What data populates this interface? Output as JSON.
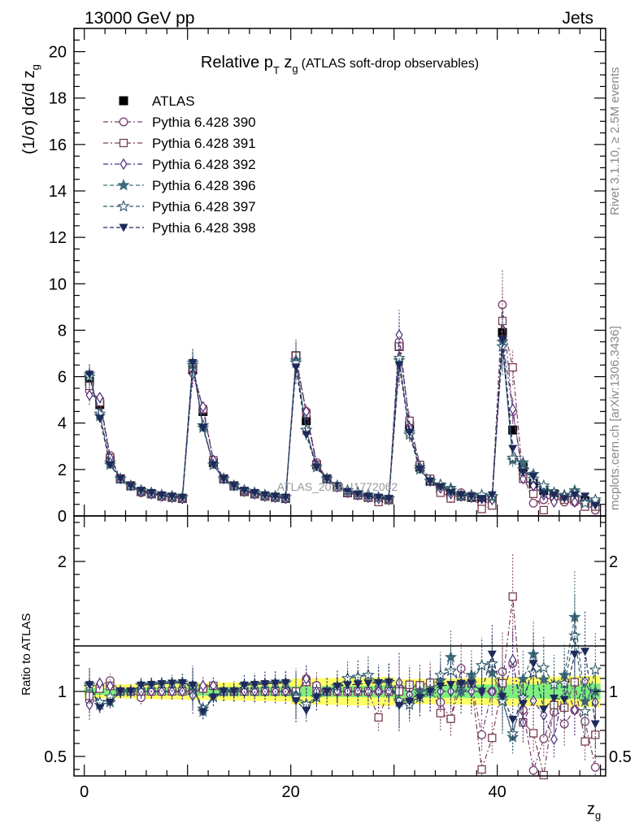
{
  "header": {
    "left": "13000 GeV pp",
    "right": "Jets"
  },
  "side_labels": {
    "top": "Rivet 3.1.10, ≥ 2.5M events",
    "bottom": "mcplots.cern.ch [arXiv:1306.3436]"
  },
  "watermark": "ATLAS_2019_I1772062",
  "title": {
    "main": "Relative p",
    "sub_t": "T",
    "mid": " z",
    "sub_g": "g",
    "tail": "(ATLAS soft-drop observables)"
  },
  "chart_data": [
    {
      "type": "line",
      "panel": "main",
      "ylabel": "(1/σ) dσ/d z",
      "ylabel_sub": "g",
      "xlim": [
        -1,
        50.5
      ],
      "ylim": [
        0,
        21
      ],
      "y_ticks": [
        "0",
        "2",
        "4",
        "6",
        "8",
        "10",
        "12",
        "14",
        "16",
        "18",
        "20"
      ],
      "legend": {
        "placement": "top-left"
      },
      "x": [
        0.5,
        1.5,
        2.5,
        3.5,
        4.5,
        5.5,
        6.5,
        7.5,
        8.5,
        9.5,
        10.5,
        11.5,
        12.5,
        13.5,
        14.5,
        15.5,
        16.5,
        17.5,
        18.5,
        19.5,
        20.5,
        21.5,
        22.5,
        23.5,
        24.5,
        25.5,
        26.5,
        27.5,
        28.5,
        29.5,
        30.5,
        31.5,
        32.5,
        33.5,
        34.5,
        35.5,
        36.5,
        37.5,
        38.5,
        39.5,
        40.5,
        41.5,
        42.5,
        43.5,
        44.5,
        45.5,
        46.5,
        47.5,
        48.5,
        49.5
      ],
      "series": [
        {
          "name": "ATLAS",
          "color": "#000000",
          "marker": "square-filled",
          "values": [
            5.8,
            4.8,
            2.4,
            1.6,
            1.3,
            1.05,
            0.95,
            0.85,
            0.8,
            0.75,
            6.3,
            4.5,
            2.3,
            1.6,
            1.3,
            1.05,
            0.95,
            0.85,
            0.8,
            0.75,
            6.9,
            4.1,
            2.2,
            1.6,
            1.25,
            1.0,
            0.9,
            0.8,
            0.75,
            0.7,
            7.3,
            3.9,
            2.1,
            1.5,
            1.2,
            0.95,
            0.85,
            0.8,
            0.75,
            0.7,
            7.9,
            3.7,
            2.1,
            1.4,
            1.1,
            0.95,
            0.8,
            0.7,
            0.65,
            0.6
          ]
        },
        {
          "name": "Pythia 6.428 390",
          "color": "#7a3e6e",
          "marker": "circle-open",
          "values": [
            5.4,
            5.0,
            2.6,
            1.6,
            1.3,
            1.0,
            0.95,
            0.85,
            0.8,
            0.75,
            6.3,
            4.6,
            2.4,
            1.6,
            1.3,
            1.05,
            0.95,
            0.85,
            0.8,
            0.75,
            6.8,
            4.5,
            2.3,
            1.6,
            1.25,
            1.0,
            0.9,
            0.8,
            0.75,
            0.7,
            7.5,
            4.0,
            2.2,
            1.6,
            1.1,
            0.75,
            1.0,
            0.85,
            0.5,
            0.7,
            9.1,
            4.5,
            1.8,
            0.55,
            0.7,
            0.8,
            0.6,
            0.6,
            0.5,
            0.25
          ]
        },
        {
          "name": "Pythia 6.428 391",
          "color": "#7a3e52",
          "marker": "square-open",
          "values": [
            5.6,
            4.9,
            2.5,
            1.6,
            1.3,
            1.05,
            0.95,
            0.85,
            0.8,
            0.75,
            6.4,
            4.6,
            2.4,
            1.6,
            1.3,
            1.05,
            0.95,
            0.85,
            0.8,
            0.75,
            6.9,
            4.4,
            2.2,
            1.6,
            1.25,
            1.0,
            0.9,
            0.8,
            0.6,
            0.7,
            7.3,
            4.1,
            2.2,
            1.6,
            1.0,
            0.75,
            0.9,
            0.85,
            0.3,
            0.45,
            8.4,
            6.4,
            1.6,
            0.95,
            0.25,
            0.85,
            0.7,
            0.75,
            0.4,
            0.4
          ]
        },
        {
          "name": "Pythia 6.428 392",
          "color": "#4b2b7a",
          "marker": "diamond-open",
          "values": [
            5.2,
            5.1,
            2.5,
            1.6,
            1.3,
            1.05,
            0.95,
            0.85,
            0.8,
            0.75,
            6.1,
            4.7,
            2.4,
            1.6,
            1.3,
            1.05,
            0.95,
            0.85,
            0.8,
            0.75,
            6.7,
            4.5,
            2.2,
            1.6,
            1.25,
            1.0,
            0.9,
            0.8,
            0.75,
            0.7,
            7.8,
            3.8,
            2.1,
            1.5,
            1.2,
            0.95,
            0.85,
            0.8,
            0.75,
            0.7,
            7.6,
            4.6,
            1.6,
            1.3,
            0.9,
            0.6,
            0.85,
            0.6,
            0.7,
            0.55
          ]
        },
        {
          "name": "Pythia 6.428 396",
          "color": "#3f6a7a",
          "marker": "star-filled",
          "values": [
            6.1,
            4.3,
            2.2,
            1.6,
            1.3,
            1.1,
            1.0,
            0.9,
            0.85,
            0.8,
            6.5,
            3.8,
            2.2,
            1.6,
            1.3,
            1.1,
            1.0,
            0.9,
            0.85,
            0.8,
            6.7,
            3.7,
            2.1,
            1.6,
            1.3,
            1.1,
            1.0,
            0.9,
            0.8,
            0.75,
            6.7,
            3.6,
            2.1,
            1.5,
            1.3,
            1.2,
            0.85,
            0.9,
            0.9,
            0.8,
            7.5,
            2.4,
            2.3,
            1.8,
            1.2,
            1.0,
            0.9,
            1.1,
            0.6,
            0.6
          ]
        },
        {
          "name": "Pythia 6.428 397",
          "color": "#2f5a6a",
          "marker": "star-open",
          "values": [
            6.0,
            4.4,
            2.3,
            1.6,
            1.3,
            1.1,
            1.0,
            0.9,
            0.85,
            0.8,
            6.6,
            3.9,
            2.2,
            1.6,
            1.3,
            1.1,
            1.0,
            0.9,
            0.85,
            0.8,
            6.6,
            3.7,
            2.1,
            1.6,
            1.3,
            1.1,
            1.0,
            0.9,
            0.8,
            0.75,
            6.8,
            3.5,
            2.0,
            1.5,
            1.35,
            1.1,
            0.9,
            0.85,
            0.9,
            0.85,
            7.3,
            2.5,
            2.0,
            1.6,
            1.3,
            1.0,
            0.85,
            1.0,
            0.55,
            0.7
          ]
        },
        {
          "name": "Pythia 6.428 398",
          "color": "#1e2a5a",
          "marker": "triangle-down-filled",
          "values": [
            6.1,
            4.2,
            2.2,
            1.6,
            1.3,
            1.1,
            1.0,
            0.9,
            0.85,
            0.8,
            6.6,
            3.8,
            2.2,
            1.6,
            1.3,
            1.1,
            1.0,
            0.9,
            0.85,
            0.8,
            6.4,
            3.5,
            2.1,
            1.6,
            1.3,
            1.05,
            0.95,
            0.85,
            0.8,
            0.75,
            6.5,
            3.6,
            2.0,
            1.5,
            1.25,
            1.0,
            0.9,
            0.85,
            0.75,
            0.9,
            7.6,
            2.9,
            1.9,
            1.7,
            0.95,
            0.9,
            0.75,
            0.9,
            0.85,
            0.45
          ]
        }
      ]
    },
    {
      "type": "line",
      "panel": "ratio",
      "ylabel": "Ratio to ATLAS",
      "xlabel": "z",
      "xlabel_sub": "g",
      "xlim": [
        -1,
        50.5
      ],
      "ylim": [
        0.35,
        2.35
      ],
      "x_ticks": [
        "0",
        "20",
        "40"
      ],
      "y_ticks": [
        "0.5",
        "1",
        "2"
      ],
      "reference_line": 1,
      "band_colors": {
        "inner": "#7ff07f",
        "outer": "#ffff66"
      }
    }
  ]
}
